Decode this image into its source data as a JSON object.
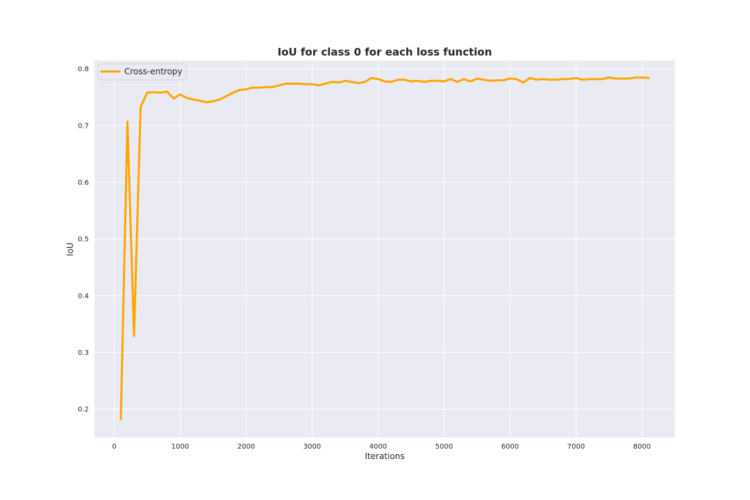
{
  "chart_data": {
    "type": "line",
    "title": "IoU for class 0 for each loss function",
    "xlabel": "Iterations",
    "ylabel": "IoU",
    "xlim": [
      -300,
      8500
    ],
    "ylim": [
      0.15,
      0.815
    ],
    "xticks": [
      0,
      1000,
      2000,
      3000,
      4000,
      5000,
      6000,
      7000,
      8000
    ],
    "yticks": [
      0.2,
      0.3,
      0.4,
      0.5,
      0.6,
      0.7,
      0.8
    ],
    "grid": true,
    "legend_position": "top-left",
    "background_color": "#eaeaf2",
    "series": [
      {
        "name": "Cross-entropy",
        "color": "#ffa500",
        "x": [
          100,
          200,
          300,
          400,
          500,
          600,
          700,
          800,
          900,
          1000,
          1100,
          1200,
          1300,
          1400,
          1500,
          1600,
          1700,
          1800,
          1900,
          2000,
          2100,
          2200,
          2300,
          2400,
          2500,
          2600,
          2700,
          2800,
          2900,
          3000,
          3100,
          3200,
          3300,
          3400,
          3500,
          3600,
          3700,
          3800,
          3900,
          4000,
          4100,
          4200,
          4300,
          4400,
          4500,
          4600,
          4700,
          4800,
          4900,
          5000,
          5100,
          5200,
          5300,
          5400,
          5500,
          5600,
          5700,
          5800,
          5900,
          6000,
          6100,
          6200,
          6300,
          6400,
          6500,
          6600,
          6700,
          6800,
          6900,
          7000,
          7100,
          7200,
          7300,
          7400,
          7500,
          7600,
          7700,
          7800,
          7900,
          8000,
          8100
        ],
        "values": [
          0.182,
          0.707,
          0.329,
          0.733,
          0.758,
          0.759,
          0.758,
          0.76,
          0.748,
          0.755,
          0.749,
          0.746,
          0.744,
          0.741,
          0.743,
          0.746,
          0.752,
          0.758,
          0.763,
          0.764,
          0.767,
          0.767,
          0.768,
          0.768,
          0.771,
          0.774,
          0.774,
          0.774,
          0.773,
          0.773,
          0.771,
          0.774,
          0.777,
          0.776,
          0.779,
          0.777,
          0.775,
          0.777,
          0.784,
          0.782,
          0.778,
          0.777,
          0.781,
          0.781,
          0.778,
          0.779,
          0.777,
          0.779,
          0.779,
          0.778,
          0.782,
          0.777,
          0.782,
          0.778,
          0.783,
          0.781,
          0.779,
          0.78,
          0.78,
          0.783,
          0.782,
          0.776,
          0.784,
          0.781,
          0.782,
          0.781,
          0.781,
          0.782,
          0.782,
          0.784,
          0.781,
          0.782,
          0.782,
          0.782,
          0.785,
          0.783,
          0.783,
          0.783,
          0.785,
          0.785,
          0.784
        ]
      }
    ]
  }
}
